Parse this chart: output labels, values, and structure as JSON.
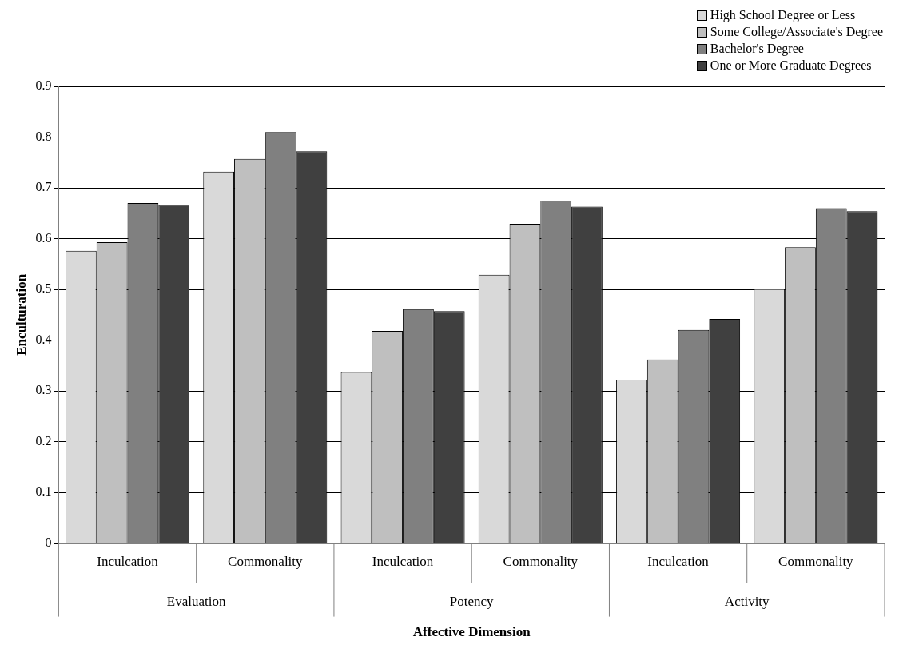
{
  "chart_data": {
    "type": "bar",
    "xlabel": "Affective Dimension",
    "ylabel": "Enculturation",
    "categories": [
      "Inculcation",
      "Commonality",
      "Inculcation",
      "Commonality",
      "Inculcation",
      "Commonality"
    ],
    "annotations": [
      "Evaluation",
      "Potency",
      "Activity"
    ],
    "series": [
      {
        "name": "High School Degree or Less",
        "color": "#d9d9d9",
        "values": [
          0.576,
          0.732,
          0.337,
          0.529,
          0.322,
          0.501
        ]
      },
      {
        "name": "Some College/Associate's Degree",
        "color": "#bfbfbf",
        "values": [
          0.593,
          0.757,
          0.418,
          0.629,
          0.362,
          0.583
        ]
      },
      {
        "name": "Bachelor's Degree",
        "color": "#808080",
        "values": [
          0.67,
          0.81,
          0.461,
          0.675,
          0.42,
          0.66
        ]
      },
      {
        "name": "One or More Graduate Degrees",
        "color": "#404040",
        "values": [
          0.666,
          0.772,
          0.457,
          0.663,
          0.442,
          0.654
        ]
      }
    ],
    "ylim": [
      0,
      0.9
    ],
    "yticks": [
      0,
      0.1,
      0.2,
      0.3,
      0.4,
      0.5,
      0.6,
      0.7,
      0.8,
      0.9
    ],
    "grid": "y",
    "legend": "top right"
  }
}
